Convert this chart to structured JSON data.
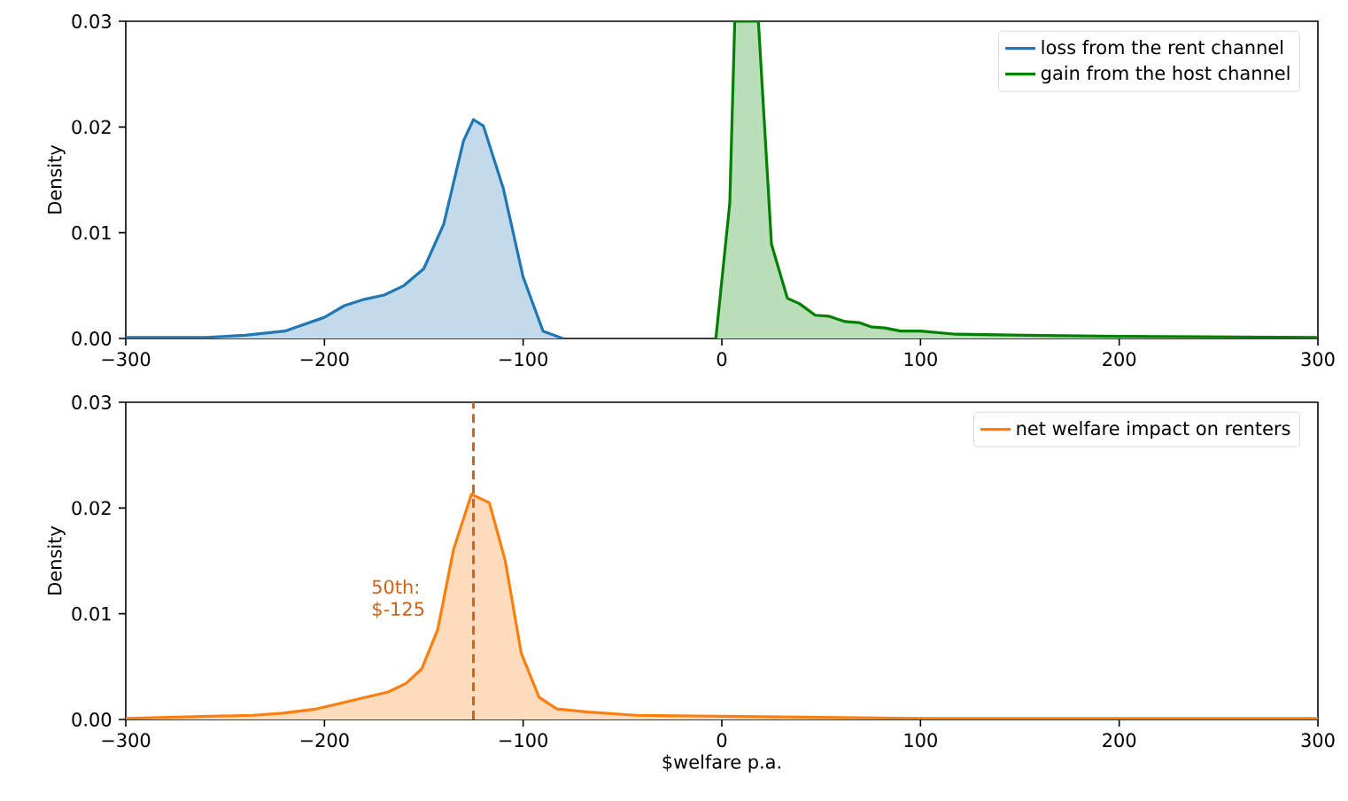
{
  "chart_data": [
    {
      "type": "area",
      "ylabel": "Density",
      "legend": "top right",
      "xlim": [
        -300,
        300
      ],
      "ylim": [
        0,
        0.03
      ],
      "xticks": [
        {
          "value": -300,
          "label": "−300"
        },
        {
          "value": -200,
          "label": "−200"
        },
        {
          "value": -100,
          "label": "−100"
        },
        0,
        100,
        200,
        300
      ],
      "yticks": [
        {
          "value": 0,
          "label": "0.00"
        },
        {
          "value": 0.01,
          "label": "0.01"
        },
        {
          "value": 0.02,
          "label": "0.02"
        },
        {
          "value": 0.03,
          "label": "0.03"
        }
      ],
      "series": [
        {
          "name": "loss from the rent channel",
          "color": "#1f77b4",
          "x": [
            -300,
            -260,
            -240,
            -220,
            -200,
            -190,
            -180,
            -170,
            -160,
            -150,
            -140,
            -130,
            -125,
            -120,
            -110,
            -100,
            -90,
            -80
          ],
          "values": [
            0.0001,
            0.0001,
            0.0003,
            0.0007,
            0.002,
            0.0031,
            0.0037,
            0.0041,
            0.005,
            0.0066,
            0.0108,
            0.0187,
            0.0207,
            0.0201,
            0.0142,
            0.0058,
            0.0007,
            0
          ]
        },
        {
          "name": "gain from the host channel",
          "color": "#008000",
          "x": [
            -3,
            4,
            6.5,
            18.4,
            25,
            33,
            39,
            47,
            54,
            62,
            69,
            75,
            82,
            90,
            100,
            118,
            153,
            200,
            300
          ],
          "values": [
            0,
            0.0128,
            0.03,
            0.03,
            0.0089,
            0.0038,
            0.0033,
            0.0022,
            0.0021,
            0.0016,
            0.0015,
            0.0011,
            0.001,
            0.0007,
            0.0007,
            0.0004,
            0.0003,
            0.0002,
            0.0001
          ]
        }
      ]
    },
    {
      "type": "area",
      "ylabel": "Density",
      "xlabel": "$welfare p.a.",
      "legend": "top right",
      "xlim": [
        -300,
        300
      ],
      "ylim": [
        0,
        0.03
      ],
      "xticks": [
        {
          "value": -300,
          "label": "−300"
        },
        {
          "value": -200,
          "label": "−200"
        },
        {
          "value": -100,
          "label": "−100"
        },
        0,
        100,
        200,
        300
      ],
      "yticks": [
        {
          "value": 0,
          "label": "0.00"
        },
        {
          "value": 0.01,
          "label": "0.01"
        },
        {
          "value": 0.02,
          "label": "0.02"
        },
        {
          "value": 0.03,
          "label": "0.03"
        }
      ],
      "ref_lines": [
        {
          "axis": "x",
          "value": -125,
          "label": "50th: $-125",
          "color": "#c8651b",
          "line_style": "dashed"
        }
      ],
      "series": [
        {
          "name": "net welfare impact on renters",
          "color": "#ff7f0e",
          "x": [
            -300,
            -236,
            -221,
            -204,
            -186,
            -168,
            -159,
            -151,
            -143,
            -135,
            -126,
            -117,
            -109,
            -101,
            -92,
            -83,
            -67,
            -43,
            0,
            50,
            100,
            200,
            300
          ],
          "values": [
            0.0001,
            0.0004,
            0.0006,
            0.001,
            0.0018,
            0.0026,
            0.0034,
            0.0048,
            0.0085,
            0.0161,
            0.0213,
            0.0205,
            0.015,
            0.0063,
            0.0021,
            0.001,
            0.0007,
            0.0004,
            0.0003,
            0.0002,
            0.0001,
            0.0001,
            0.0001
          ]
        }
      ]
    }
  ]
}
